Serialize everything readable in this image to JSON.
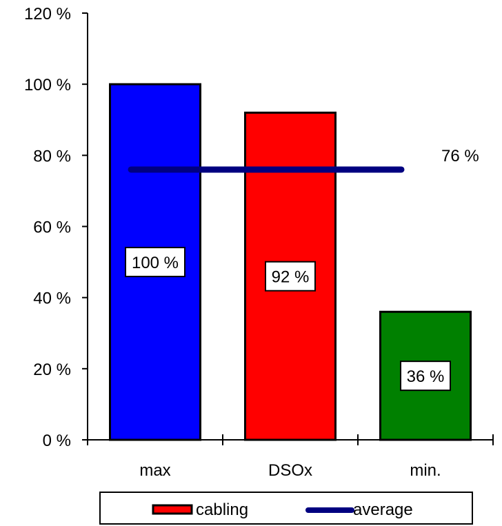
{
  "chart_data": {
    "type": "bar",
    "categories": [
      "max",
      "DSOx",
      "min."
    ],
    "series": [
      {
        "name": "cabling",
        "values": [
          100,
          92,
          36
        ],
        "data_labels": [
          "100 %",
          "92 %",
          "36 %"
        ],
        "colors": [
          "#0000ff",
          "#ff0000",
          "#008000"
        ]
      },
      {
        "name": "average",
        "type": "line",
        "value": 76,
        "data_label": "76 %",
        "color": "#000080"
      }
    ],
    "y_ticks": [
      0,
      20,
      40,
      60,
      80,
      100,
      120
    ],
    "y_tick_labels": [
      "0 %",
      "20 %",
      "40 %",
      "60 %",
      "80 %",
      "100 %",
      "120 %"
    ],
    "ylim": [
      0,
      120
    ],
    "grid": false,
    "legend": {
      "position": "bottom",
      "entries": [
        "cabling",
        "average"
      ]
    }
  }
}
